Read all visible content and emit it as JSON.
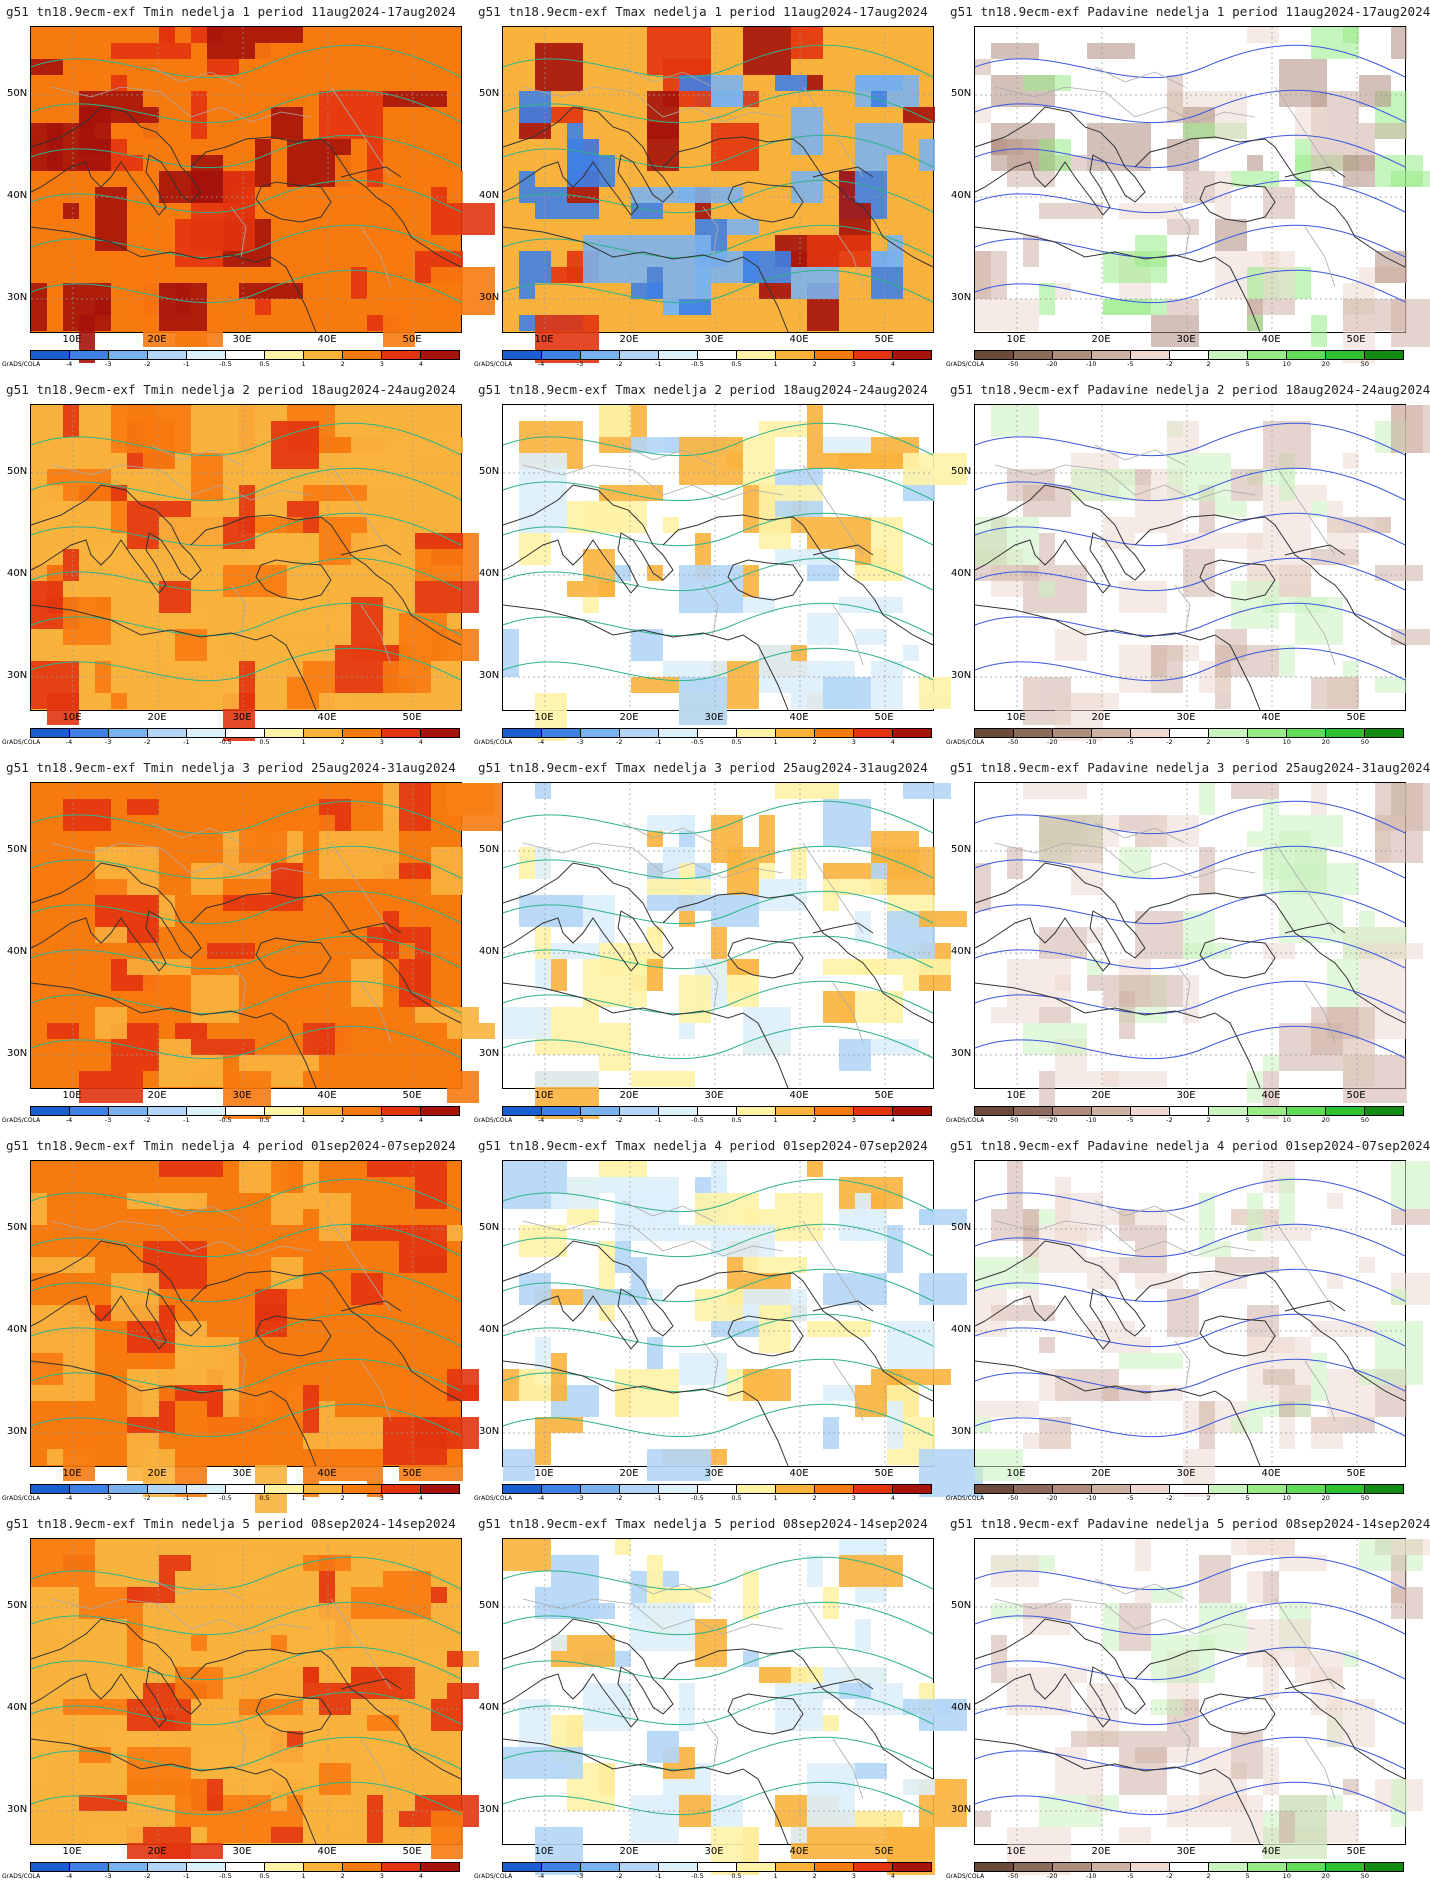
{
  "lat_labels": [
    "50N",
    "40N",
    "30N"
  ],
  "lon_labels": [
    "10E",
    "20E",
    "30E",
    "40E",
    "50E"
  ],
  "credit": "GrADS/COLA",
  "temp_scale": {
    "labels": [
      "-4",
      "-3",
      "-2",
      "-1",
      "-0.5",
      "0.5",
      "1",
      "2",
      "3",
      "4"
    ],
    "colors": [
      "#1a5fd0",
      "#3f80e4",
      "#7ab2ee",
      "#b3d6f6",
      "#def0fb",
      "#ffffff",
      "#fff3a6",
      "#f9b33d",
      "#f77a0f",
      "#e2340e",
      "#a5130a"
    ]
  },
  "precip_scale": {
    "labels": [
      "-50",
      "-20",
      "-10",
      "-5",
      "-2",
      "2",
      "5",
      "10",
      "20",
      "50"
    ],
    "colors": [
      "#6b4a3c",
      "#8d6b5c",
      "#ae8d7e",
      "#cdb1a4",
      "#ecd9cf",
      "#ffffff",
      "#cbf3c0",
      "#98eb86",
      "#5fdc55",
      "#2fbf2f",
      "#128c12"
    ]
  },
  "panels": [
    {
      "title": "g51  tn18.9ecm-exf Tmin nedelja 1 period 11aug2024-17aug2024",
      "var": "tmin"
    },
    {
      "title": "g51  tn18.9ecm-exf Tmax nedelja 1 period 11aug2024-17aug2024",
      "var": "tmax"
    },
    {
      "title": "g51  tn18.9ecm-exf Padavine nedelja 1 period 11aug2024-17aug2024",
      "var": "prec"
    },
    {
      "title": "g51  tn18.9ecm-exf Tmin nedelja 2 period 18aug2024-24aug2024",
      "var": "tmin"
    },
    {
      "title": "g51  tn18.9ecm-exf Tmax nedelja 2 period 18aug2024-24aug2024",
      "var": "tmax"
    },
    {
      "title": "g51  tn18.9ecm-exf Padavine nedelja 2 period 18aug2024-24aug2024",
      "var": "prec"
    },
    {
      "title": "g51  tn18.9ecm-exf Tmin nedelja 3 period 25aug2024-31aug2024",
      "var": "tmin"
    },
    {
      "title": "g51  tn18.9ecm-exf Tmax nedelja 3 period 25aug2024-31aug2024",
      "var": "tmax"
    },
    {
      "title": "g51  tn18.9ecm-exf Padavine nedelja 3 period 25aug2024-31aug2024",
      "var": "prec"
    },
    {
      "title": "g51  tn18.9ecm-exf Tmin nedelja 4 period 01sep2024-07sep2024",
      "var": "tmin"
    },
    {
      "title": "g51  tn18.9ecm-exf Tmax nedelja 4 period 01sep2024-07sep2024",
      "var": "tmax"
    },
    {
      "title": "g51  tn18.9ecm-exf Padavine nedelja 4 period 01sep2024-07sep2024",
      "var": "prec"
    },
    {
      "title": "g51  tn18.9ecm-exf Tmin nedelja 5 period 08sep2024-14sep2024",
      "var": "tmin"
    },
    {
      "title": "g51  tn18.9ecm-exf Tmax nedelja 5 period 08sep2024-14sep2024",
      "var": "tmax"
    },
    {
      "title": "g51  tn18.9ecm-exf Padavine nedelja 5 period 08sep2024-14sep2024",
      "var": "prec"
    }
  ]
}
